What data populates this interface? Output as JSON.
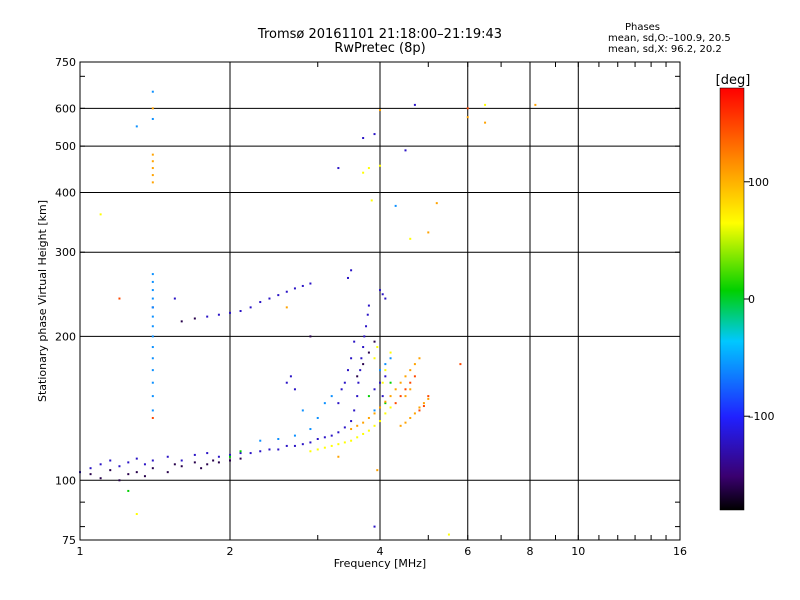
{
  "header": {
    "title_line1": "Tromsø 20161101 21:18:00–21:19:43",
    "title_line2": "RwPretec (8p)",
    "phases_title": "Phases",
    "phases_o": "mean, sd,O:–100.9, 20.5",
    "phases_x": "mean, sd,X:  96.2, 20.2"
  },
  "chart_data": {
    "type": "scatter",
    "xlabel": "Frequency [MHz]",
    "ylabel": "Stationary phase Virtual Height [km]",
    "xscale": "log",
    "yscale": "log",
    "xlim": [
      1,
      16
    ],
    "ylim": [
      75,
      750
    ],
    "x_ticks": [
      1,
      2,
      4,
      6,
      8,
      10,
      16
    ],
    "x_tick_labels": [
      "1",
      "2",
      "4",
      "6",
      "8",
      "10",
      "16"
    ],
    "y_ticks": [
      75,
      100,
      200,
      300,
      400,
      500,
      600,
      750
    ],
    "y_tick_labels": [
      "75",
      "100",
      "200",
      "300",
      "400",
      "500",
      "600",
      "750"
    ],
    "grid": true,
    "colorbar": {
      "label": "[deg]",
      "range": [
        -180,
        180
      ],
      "ticks": [
        -100,
        0,
        100
      ],
      "tick_labels": [
        "–100",
        "0",
        "100"
      ],
      "colormap": "rainbow"
    },
    "series": [
      {
        "color_value": -120,
        "points": [
          [
            1.0,
            104
          ],
          [
            1.05,
            106
          ],
          [
            1.1,
            108
          ],
          [
            1.15,
            110
          ],
          [
            1.2,
            107
          ],
          [
            1.25,
            109
          ],
          [
            1.3,
            111
          ],
          [
            1.35,
            108
          ],
          [
            1.4,
            110
          ],
          [
            1.5,
            112
          ],
          [
            1.6,
            110
          ],
          [
            1.7,
            113
          ],
          [
            1.8,
            114
          ],
          [
            1.9,
            112
          ],
          [
            2.0,
            113
          ],
          [
            2.1,
            114
          ],
          [
            2.2,
            114
          ],
          [
            2.3,
            115
          ],
          [
            2.4,
            116
          ],
          [
            2.5,
            116
          ],
          [
            2.6,
            118
          ],
          [
            2.7,
            118
          ],
          [
            2.8,
            119
          ],
          [
            2.9,
            120
          ],
          [
            3.0,
            122
          ],
          [
            3.1,
            123
          ],
          [
            3.2,
            124
          ],
          [
            3.3,
            126
          ],
          [
            3.4,
            129
          ],
          [
            3.5,
            133
          ],
          [
            3.55,
            140
          ],
          [
            3.6,
            150
          ],
          [
            3.62,
            160
          ],
          [
            3.65,
            170
          ],
          [
            3.67,
            180
          ],
          [
            3.7,
            190
          ],
          [
            3.72,
            200
          ],
          [
            3.75,
            210
          ],
          [
            3.78,
            222
          ],
          [
            3.8,
            232
          ],
          [
            3.3,
            145
          ],
          [
            3.35,
            155
          ],
          [
            3.4,
            160
          ],
          [
            3.45,
            170
          ],
          [
            3.5,
            180
          ],
          [
            3.55,
            195
          ],
          [
            3.45,
            265
          ],
          [
            3.5,
            275
          ],
          [
            1.8,
            220
          ],
          [
            1.9,
            222
          ],
          [
            2.0,
            224
          ],
          [
            2.1,
            226
          ],
          [
            2.2,
            230
          ],
          [
            2.3,
            236
          ],
          [
            2.4,
            240
          ],
          [
            2.5,
            244
          ],
          [
            2.6,
            248
          ],
          [
            2.7,
            252
          ],
          [
            2.8,
            255
          ],
          [
            2.9,
            258
          ],
          [
            2.6,
            160
          ],
          [
            2.65,
            165
          ],
          [
            2.7,
            155
          ],
          [
            1.55,
            240
          ],
          [
            1.4,
            230
          ],
          [
            3.9,
            155
          ],
          [
            4.0,
            160
          ],
          [
            4.1,
            165
          ],
          [
            4.05,
            150
          ],
          [
            3.3,
            450
          ],
          [
            3.7,
            520
          ],
          [
            3.9,
            530
          ],
          [
            4.0,
            250
          ],
          [
            4.05,
            245
          ],
          [
            4.1,
            240
          ],
          [
            3.9,
            80
          ],
          [
            4.5,
            490
          ],
          [
            4.7,
            610
          ]
        ]
      },
      {
        "color_value": -160,
        "points": [
          [
            1.05,
            103
          ],
          [
            1.1,
            101
          ],
          [
            1.15,
            105
          ],
          [
            1.2,
            100
          ],
          [
            1.25,
            103
          ],
          [
            1.3,
            104
          ],
          [
            1.35,
            102
          ],
          [
            1.4,
            106
          ],
          [
            1.5,
            104
          ],
          [
            1.55,
            108
          ],
          [
            1.6,
            107
          ],
          [
            1.7,
            109
          ],
          [
            1.75,
            106
          ],
          [
            1.8,
            108
          ],
          [
            1.85,
            110
          ],
          [
            1.9,
            109
          ],
          [
            2.0,
            110
          ],
          [
            2.1,
            111
          ],
          [
            1.6,
            215
          ],
          [
            1.7,
            218
          ],
          [
            3.6,
            165
          ],
          [
            3.7,
            175
          ],
          [
            3.8,
            185
          ],
          [
            3.9,
            195
          ],
          [
            2.9,
            200
          ]
        ]
      },
      {
        "color_value": -60,
        "points": [
          [
            1.4,
            270
          ],
          [
            1.4,
            260
          ],
          [
            1.4,
            250
          ],
          [
            1.4,
            240
          ],
          [
            1.4,
            230
          ],
          [
            1.4,
            220
          ],
          [
            1.4,
            210
          ],
          [
            1.4,
            200
          ],
          [
            1.4,
            190
          ],
          [
            1.4,
            180
          ],
          [
            1.4,
            170
          ],
          [
            1.4,
            160
          ],
          [
            1.4,
            150
          ],
          [
            1.4,
            140
          ],
          [
            1.4,
            650
          ],
          [
            1.4,
            570
          ],
          [
            1.3,
            550
          ],
          [
            2.3,
            121
          ],
          [
            2.5,
            122
          ],
          [
            2.7,
            124
          ],
          [
            2.9,
            128
          ],
          [
            3.0,
            135
          ],
          [
            3.1,
            145
          ],
          [
            3.2,
            150
          ],
          [
            4.0,
            170
          ],
          [
            4.1,
            175
          ],
          [
            4.2,
            180
          ],
          [
            3.9,
            140
          ],
          [
            2.8,
            140
          ],
          [
            4.3,
            375
          ]
        ]
      },
      {
        "color_value": 0,
        "points": [
          [
            1.25,
            95
          ],
          [
            2.0,
            112
          ],
          [
            2.1,
            115
          ],
          [
            3.8,
            150
          ],
          [
            4.1,
            145
          ],
          [
            4.2,
            160
          ]
        ]
      },
      {
        "color_value": 60,
        "points": [
          [
            2.9,
            115
          ],
          [
            3.0,
            116
          ],
          [
            3.1,
            117
          ],
          [
            3.2,
            118
          ],
          [
            3.3,
            119
          ],
          [
            3.4,
            120
          ],
          [
            3.5,
            121
          ],
          [
            3.6,
            123
          ],
          [
            3.7,
            125
          ],
          [
            3.8,
            127
          ],
          [
            3.9,
            130
          ],
          [
            4.0,
            133
          ],
          [
            4.1,
            138
          ],
          [
            4.2,
            142
          ],
          [
            3.7,
            440
          ],
          [
            3.8,
            450
          ],
          [
            3.85,
            385
          ],
          [
            4.0,
            455
          ],
          [
            4.05,
            160
          ],
          [
            4.1,
            170
          ],
          [
            4.2,
            185
          ],
          [
            3.9,
            180
          ],
          [
            3.95,
            190
          ],
          [
            1.1,
            360
          ],
          [
            1.3,
            85
          ],
          [
            5.5,
            77
          ],
          [
            6.5,
            610
          ],
          [
            4.6,
            320
          ]
        ]
      },
      {
        "color_value": 110,
        "points": [
          [
            3.5,
            128
          ],
          [
            3.6,
            130
          ],
          [
            3.7,
            132
          ],
          [
            3.8,
            135
          ],
          [
            3.9,
            138
          ],
          [
            4.0,
            142
          ],
          [
            4.1,
            146
          ],
          [
            4.2,
            150
          ],
          [
            4.3,
            155
          ],
          [
            4.4,
            160
          ],
          [
            4.5,
            165
          ],
          [
            4.6,
            170
          ],
          [
            4.7,
            175
          ],
          [
            4.8,
            180
          ],
          [
            4.4,
            130
          ],
          [
            4.5,
            132
          ],
          [
            4.6,
            135
          ],
          [
            4.7,
            138
          ],
          [
            4.8,
            142
          ],
          [
            4.9,
            145
          ],
          [
            5.0,
            148
          ],
          [
            4.5,
            150
          ],
          [
            4.6,
            155
          ],
          [
            1.4,
            480
          ],
          [
            1.4,
            465
          ],
          [
            1.4,
            450
          ],
          [
            1.4,
            435
          ],
          [
            1.4,
            420
          ],
          [
            1.4,
            600
          ],
          [
            6.0,
            575
          ],
          [
            4.0,
            595
          ],
          [
            5.2,
            380
          ],
          [
            5.0,
            330
          ],
          [
            3.95,
            105
          ],
          [
            8.2,
            610
          ],
          [
            6.5,
            560
          ],
          [
            2.6,
            230
          ],
          [
            3.3,
            112
          ]
        ]
      },
      {
        "color_value": 150,
        "points": [
          [
            4.3,
            145
          ],
          [
            4.4,
            150
          ],
          [
            4.5,
            155
          ],
          [
            4.6,
            160
          ],
          [
            4.7,
            165
          ],
          [
            4.8,
            140
          ],
          [
            4.9,
            143
          ],
          [
            5.0,
            150
          ],
          [
            1.4,
            135
          ],
          [
            6.0,
            600
          ],
          [
            5.8,
            175
          ],
          [
            1.2,
            240
          ]
        ]
      }
    ]
  }
}
